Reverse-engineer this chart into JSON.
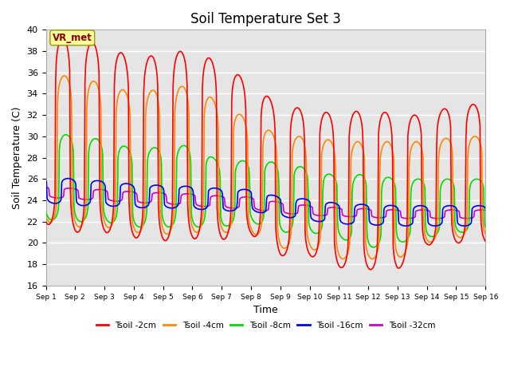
{
  "title": "Soil Temperature Set 3",
  "xlabel": "Time",
  "ylabel": "Soil Temperature (C)",
  "ylim": [
    16,
    40
  ],
  "xlim": [
    0,
    15
  ],
  "xtick_positions": [
    0,
    1,
    2,
    3,
    4,
    5,
    6,
    7,
    8,
    9,
    10,
    11,
    12,
    13,
    14,
    15
  ],
  "xtick_labels": [
    "Sep 1",
    "Sep 2",
    "Sep 3",
    "Sep 4",
    "Sep 5",
    "Sep 6",
    "Sep 7",
    "Sep 8",
    "Sep 9",
    "Sep 10",
    "Sep 11",
    "Sep 12",
    "Sep 13",
    "Sep 14",
    "Sep 15",
    "Sep 16"
  ],
  "ytick_values": [
    16,
    18,
    20,
    22,
    24,
    26,
    28,
    30,
    32,
    34,
    36,
    38,
    40
  ],
  "series_labels": [
    "Tsoil -2cm",
    "Tsoil -4cm",
    "Tsoil -8cm",
    "Tsoil -16cm",
    "Tsoil -32cm"
  ],
  "series_colors": [
    "#ff0000",
    "#ff8800",
    "#00dd00",
    "#0000ff",
    "#cc00cc"
  ],
  "background_color": "#e5e5e5",
  "vrmet_label": "VR_met",
  "vrmet_box_color": "#ffff99",
  "vrmet_text_color": "#880000",
  "peak_2cm": [
    39.5,
    39.0,
    38.7,
    37.2,
    37.8,
    38.1,
    36.8,
    35.0,
    32.8,
    32.6,
    32.0,
    32.6,
    32.0,
    32.0,
    33.0
  ],
  "trough_2cm": [
    21.8,
    21.0,
    21.0,
    20.5,
    20.2,
    20.4,
    20.3,
    20.8,
    18.8,
    18.8,
    17.7,
    17.5,
    17.5,
    19.8,
    20.0
  ],
  "peak_4cm": [
    36.0,
    35.5,
    35.0,
    34.0,
    34.5,
    34.8,
    33.0,
    31.5,
    30.0,
    30.0,
    29.5,
    29.5,
    29.5,
    29.5,
    30.0
  ],
  "trough_4cm": [
    22.0,
    21.5,
    21.5,
    21.0,
    20.8,
    21.0,
    21.0,
    21.0,
    19.5,
    19.5,
    18.5,
    18.5,
    18.5,
    20.0,
    20.5
  ],
  "peak_8cm": [
    30.5,
    30.0,
    29.7,
    28.8,
    29.0,
    29.2,
    27.5,
    27.8,
    27.5,
    27.0,
    26.2,
    26.5,
    26.0,
    26.0,
    26.0
  ],
  "trough_8cm": [
    22.2,
    22.0,
    22.0,
    21.5,
    21.5,
    21.5,
    21.5,
    22.0,
    21.0,
    21.0,
    20.5,
    19.5,
    20.0,
    20.5,
    21.0
  ],
  "peak_16cm": [
    26.2,
    26.0,
    25.8,
    25.5,
    25.4,
    25.3,
    25.1,
    25.0,
    24.3,
    24.1,
    23.7,
    23.6,
    23.5,
    23.5,
    23.5
  ],
  "trough_16cm": [
    23.8,
    23.5,
    23.5,
    23.3,
    23.3,
    23.2,
    23.0,
    23.0,
    22.5,
    22.1,
    21.8,
    21.7,
    21.6,
    21.6,
    21.6
  ],
  "peak_32cm": [
    25.3,
    25.1,
    25.0,
    24.8,
    24.7,
    24.6,
    24.4,
    24.3,
    23.8,
    23.5,
    23.3,
    23.2,
    23.1,
    23.1,
    23.1
  ],
  "trough_32cm": [
    24.3,
    24.1,
    24.0,
    23.8,
    23.7,
    23.5,
    23.3,
    23.2,
    22.8,
    22.6,
    22.5,
    22.4,
    22.3,
    22.3,
    22.3
  ],
  "phase_4cm": 0.06,
  "phase_8cm": 0.12,
  "phase_16cm": 0.2,
  "phase_32cm": 0.28,
  "peak_time": 0.58,
  "sharpness": 6.0,
  "n_points": 720,
  "days": 15
}
